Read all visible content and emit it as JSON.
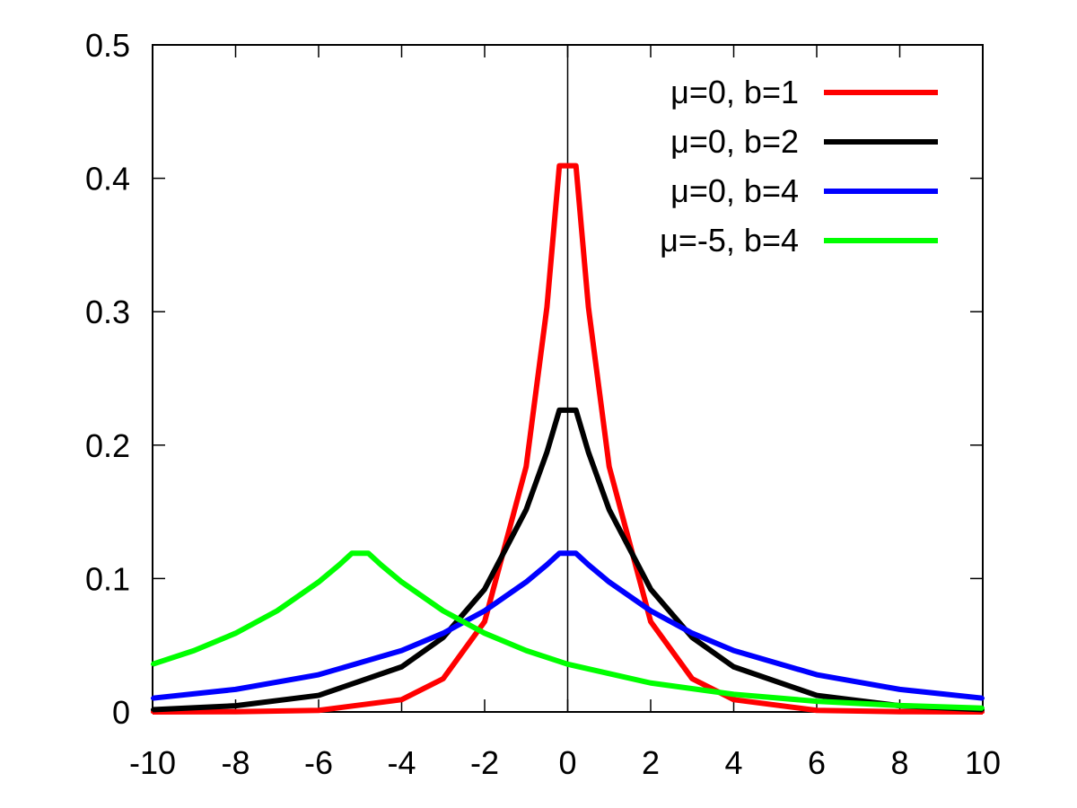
{
  "chart_data": {
    "type": "line",
    "title": "",
    "xlabel": "",
    "ylabel": "",
    "xlim": [
      -10,
      10
    ],
    "ylim": [
      0,
      0.5
    ],
    "xticks": [
      -10,
      -8,
      -6,
      -4,
      -2,
      0,
      2,
      4,
      6,
      8,
      10
    ],
    "yticks": [
      0,
      0.1,
      0.2,
      0.3,
      0.4,
      0.5
    ],
    "x_tick_labels": [
      "-10",
      "-8",
      "-6",
      "-4",
      "-2",
      "0",
      "2",
      "4",
      "6",
      "8",
      "10"
    ],
    "y_tick_labels": [
      "0",
      "0.1",
      "0.2",
      "0.3",
      "0.4",
      "0.5"
    ],
    "grid": false,
    "legend_position": "top-right",
    "series": [
      {
        "name": "μ=0, b=1",
        "mu": 0,
        "b": 1,
        "color": "#ff0000",
        "x": [
          -10,
          -8,
          -6,
          -4,
          -3,
          -2,
          -1,
          -0.5,
          -0.2,
          0.2,
          0.5,
          1,
          2,
          3,
          4,
          6,
          8,
          10
        ],
        "values": [
          2e-05,
          0.00017,
          0.0012,
          0.0092,
          0.0249,
          0.0677,
          0.1839,
          0.3033,
          0.4094,
          0.4094,
          0.3033,
          0.1839,
          0.0677,
          0.0249,
          0.0092,
          0.0012,
          0.00017,
          2e-05
        ]
      },
      {
        "name": "μ=0, b=2",
        "mu": 0,
        "b": 2,
        "color": "#000000",
        "x": [
          -10,
          -8,
          -6,
          -4,
          -3,
          -2,
          -1,
          -0.5,
          -0.2,
          0.2,
          0.5,
          1,
          2,
          3,
          4,
          6,
          8,
          10
        ],
        "values": [
          0.0017,
          0.0046,
          0.0124,
          0.0338,
          0.0558,
          0.092,
          0.1516,
          0.1947,
          0.2262,
          0.2262,
          0.1947,
          0.1516,
          0.092,
          0.0558,
          0.0338,
          0.0124,
          0.0046,
          0.0017
        ]
      },
      {
        "name": "μ=0, b=4",
        "mu": 0,
        "b": 4,
        "color": "#0000ff",
        "x": [
          -10,
          -8,
          -6,
          -4,
          -3,
          -2,
          -1,
          -0.5,
          -0.2,
          0.2,
          0.5,
          1,
          2,
          3,
          4,
          6,
          8,
          10
        ],
        "values": [
          0.0103,
          0.0169,
          0.0279,
          0.046,
          0.059,
          0.0758,
          0.0974,
          0.1103,
          0.1189,
          0.1189,
          0.1103,
          0.0974,
          0.0758,
          0.059,
          0.046,
          0.0279,
          0.0169,
          0.0103
        ]
      },
      {
        "name": "μ=-5, b=4",
        "mu": -5,
        "b": 4,
        "color": "#00ff00",
        "x": [
          -10,
          -9,
          -8,
          -7,
          -6,
          -5.5,
          -5.2,
          -4.8,
          -4.5,
          -4,
          -3,
          -2,
          -1,
          0,
          2,
          4,
          6,
          8,
          10
        ],
        "values": [
          0.0358,
          0.046,
          0.059,
          0.0758,
          0.0974,
          0.1103,
          0.1189,
          0.1189,
          0.1103,
          0.0974,
          0.0758,
          0.059,
          0.046,
          0.0358,
          0.0217,
          0.0132,
          0.008,
          0.0048,
          0.0029
        ]
      }
    ]
  }
}
